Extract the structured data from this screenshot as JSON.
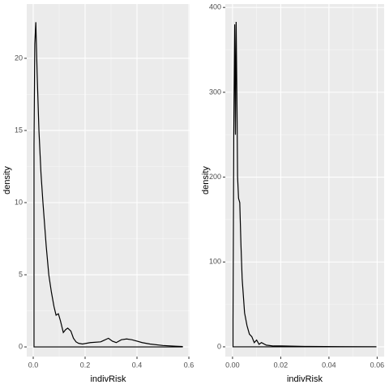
{
  "chart_data": [
    {
      "type": "density",
      "x_label": "indivRisk",
      "y_label": "density",
      "x": [
        0.003,
        0.003,
        0.006,
        0.01,
        0.015,
        0.022,
        0.03,
        0.0375,
        0.05,
        0.06,
        0.07,
        0.08,
        0.088,
        0.097,
        0.105,
        0.116,
        0.125,
        0.133,
        0.145,
        0.155,
        0.165,
        0.175,
        0.19,
        0.22,
        0.26,
        0.29,
        0.305,
        0.32,
        0.34,
        0.36,
        0.38,
        0.4,
        0.42,
        0.45,
        0.5,
        0.55,
        0.575,
        0.575
      ],
      "y": [
        0,
        14,
        21,
        22.5,
        19,
        15,
        12,
        10,
        7,
        5,
        3.8,
        2.8,
        2.2,
        2.3,
        1.8,
        1.0,
        1.2,
        1.3,
        1.1,
        0.6,
        0.35,
        0.25,
        0.2,
        0.3,
        0.35,
        0.6,
        0.4,
        0.3,
        0.5,
        0.55,
        0.5,
        0.4,
        0.3,
        0.2,
        0.1,
        0.05,
        0.03,
        0
      ],
      "color": "#000000",
      "xlim": [
        -0.025,
        0.603
      ],
      "ylim": [
        -0.67,
        23.76
      ],
      "xticks": [
        {
          "value": 0,
          "label": "0.0"
        },
        {
          "value": 0.2,
          "label": "0.2"
        },
        {
          "value": 0.4,
          "label": "0.4"
        },
        {
          "value": 0.6,
          "label": "0.6"
        }
      ],
      "yticks": [
        0,
        5,
        10,
        15,
        20
      ],
      "grid": true
    },
    {
      "type": "density",
      "x_label": "indivRisk",
      "y_label": "density",
      "x": [
        0.0002,
        0.0002,
        0.0005,
        0.0009,
        0.0012,
        0.0015,
        0.0018,
        0.0021,
        0.0025,
        0.003,
        0.0035,
        0.004,
        0.005,
        0.006,
        0.007,
        0.008,
        0.009,
        0.01,
        0.011,
        0.012,
        0.014,
        0.017,
        0.02,
        0.03,
        0.045,
        0.0595,
        0.0595
      ],
      "y": [
        0,
        30,
        250,
        380,
        250,
        383,
        300,
        200,
        175,
        170,
        120,
        80,
        40,
        25,
        15,
        12,
        5,
        8,
        3,
        5,
        2,
        1,
        1,
        0.5,
        0.2,
        0.1,
        0
      ],
      "color": "#000000",
      "xlim": [
        -0.003,
        0.0629
      ],
      "ylim": [
        -11.5,
        404
      ],
      "xticks": [
        {
          "value": 0,
          "label": "0.00"
        },
        {
          "value": 0.02,
          "label": "0.02"
        },
        {
          "value": 0.04,
          "label": "0.04"
        },
        {
          "value": 0.06,
          "label": "0.06"
        }
      ],
      "yticks": [
        0,
        100,
        200,
        300,
        400
      ],
      "grid": true
    }
  ]
}
